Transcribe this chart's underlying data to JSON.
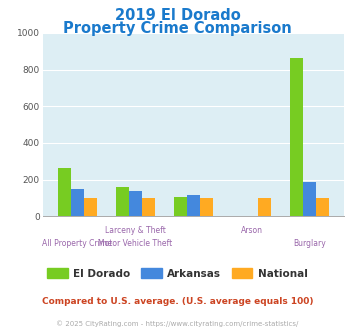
{
  "title_line1": "2019 El Dorado",
  "title_line2": "Property Crime Comparison",
  "title_color": "#1a7acc",
  "categories": [
    "All Property Crime",
    "Larceny & Theft",
    "Motor Vehicle Theft",
    "Arson",
    "Burglary"
  ],
  "cat_labels_line1": [
    "",
    "Larceny & Theft",
    "",
    "Arson",
    ""
  ],
  "cat_labels_line2": [
    "All Property Crime",
    "Motor Vehicle Theft",
    "",
    "",
    "Burglary"
  ],
  "el_dorado": [
    265,
    160,
    107,
    0,
    862
  ],
  "arkansas": [
    147,
    135,
    117,
    0,
    185
  ],
  "national": [
    100,
    100,
    100,
    100,
    100
  ],
  "el_dorado_color": "#77cc22",
  "arkansas_color": "#4488dd",
  "national_color": "#ffaa22",
  "plot_bg_color": "#ddeef4",
  "ylim": [
    0,
    1000
  ],
  "yticks": [
    0,
    200,
    400,
    600,
    800,
    1000
  ],
  "legend_labels": [
    "El Dorado",
    "Arkansas",
    "National"
  ],
  "footnote1": "Compared to U.S. average. (U.S. average equals 100)",
  "footnote2": "© 2025 CityRating.com - https://www.cityrating.com/crime-statistics/",
  "footnote1_color": "#cc4422",
  "footnote2_color": "#aaaaaa",
  "xlabel_color": "#9966aa",
  "bar_width": 0.22
}
